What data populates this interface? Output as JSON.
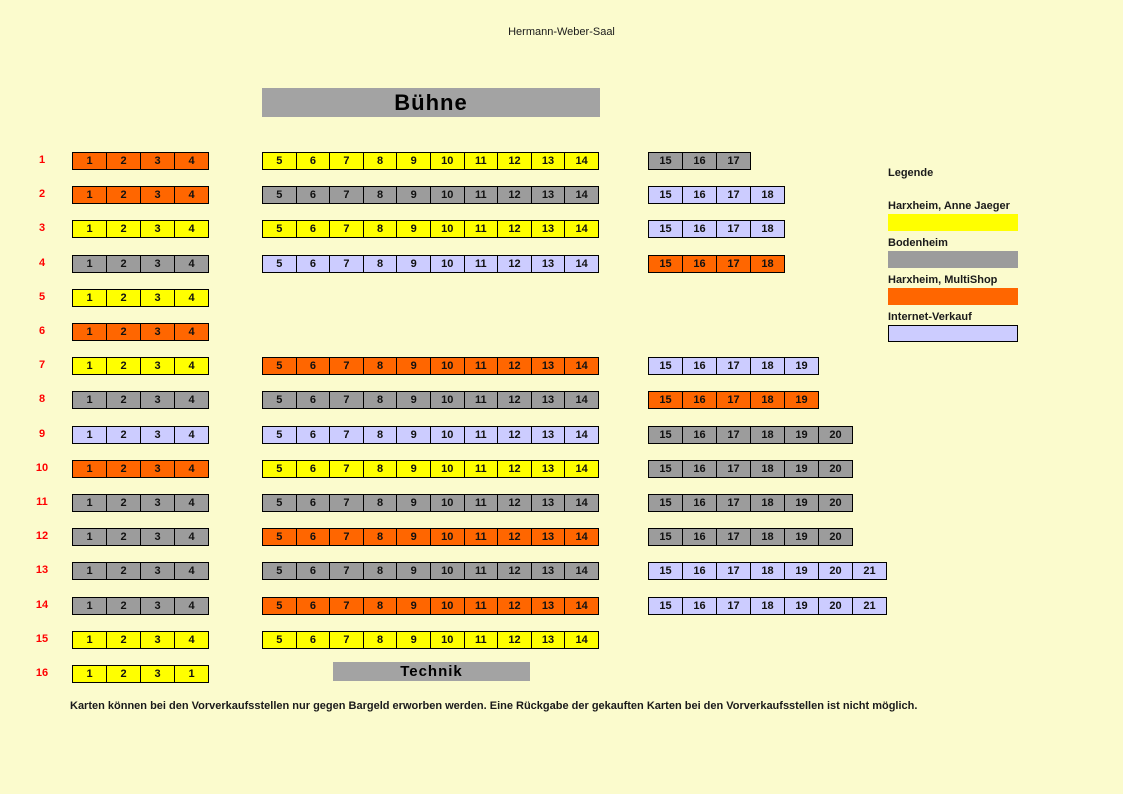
{
  "page": {
    "title": "Hermann-Weber-Saal",
    "background_color": "#FBFBCD",
    "footer_note": "Karten können bei den Vorverkaufsstellen nur gegen Bargeld erworben werden. Eine Rückgabe der gekauften Karten bei den Vorverkaufsstellen ist nicht möglich."
  },
  "stage": {
    "label": "Bühne"
  },
  "technik": {
    "label": "Technik"
  },
  "colors": {
    "yellow": "#FFFF00",
    "gray": "#9C9C9C",
    "orange": "#FF6600",
    "lavender": "#CCCCFF",
    "bar_gray": "#A3A3A3",
    "row_label": "#FF0000"
  },
  "legend": {
    "title": "Legende",
    "items": [
      {
        "label": "Harxheim, Anne Jaeger",
        "color_key": "yellow",
        "bordered": false
      },
      {
        "label": "Bodenheim",
        "color_key": "gray",
        "bordered": false
      },
      {
        "label": "Harxheim, MultiShop",
        "color_key": "orange",
        "bordered": false
      },
      {
        "label": "Internet-Verkauf",
        "color_key": "lavender",
        "bordered": true
      }
    ]
  },
  "rows": [
    {
      "label": "1",
      "left": {
        "color_key": "orange",
        "seats": [
          "1",
          "2",
          "3",
          "4"
        ]
      },
      "middle": {
        "color_key": "yellow",
        "seats": [
          "5",
          "6",
          "7",
          "8",
          "9",
          "10",
          "11",
          "12",
          "13",
          "14"
        ]
      },
      "right": {
        "color_key": "gray",
        "seats": [
          "15",
          "16",
          "17"
        ]
      }
    },
    {
      "label": "2",
      "left": {
        "color_key": "orange",
        "seats": [
          "1",
          "2",
          "3",
          "4"
        ]
      },
      "middle": {
        "color_key": "gray",
        "seats": [
          "5",
          "6",
          "7",
          "8",
          "9",
          "10",
          "11",
          "12",
          "13",
          "14"
        ]
      },
      "right": {
        "color_key": "lavender",
        "seats": [
          "15",
          "16",
          "17",
          "18"
        ]
      }
    },
    {
      "label": "3",
      "left": {
        "color_key": "yellow",
        "seats": [
          "1",
          "2",
          "3",
          "4"
        ]
      },
      "middle": {
        "color_key": "yellow",
        "seats": [
          "5",
          "6",
          "7",
          "8",
          "9",
          "10",
          "11",
          "12",
          "13",
          "14"
        ]
      },
      "right": {
        "color_key": "lavender",
        "seats": [
          "15",
          "16",
          "17",
          "18"
        ]
      }
    },
    {
      "label": "4",
      "left": {
        "color_key": "gray",
        "seats": [
          "1",
          "2",
          "3",
          "4"
        ]
      },
      "middle": {
        "color_key": "lavender",
        "seats": [
          "5",
          "6",
          "7",
          "8",
          "9",
          "10",
          "11",
          "12",
          "13",
          "14"
        ]
      },
      "right": {
        "color_key": "orange",
        "seats": [
          "15",
          "16",
          "17",
          "18"
        ]
      }
    },
    {
      "label": "5",
      "left": {
        "color_key": "yellow",
        "seats": [
          "1",
          "2",
          "3",
          "4"
        ]
      },
      "middle": null,
      "right": null
    },
    {
      "label": "6",
      "left": {
        "color_key": "orange",
        "seats": [
          "1",
          "2",
          "3",
          "4"
        ]
      },
      "middle": null,
      "right": null
    },
    {
      "label": "7",
      "left": {
        "color_key": "yellow",
        "seats": [
          "1",
          "2",
          "3",
          "4"
        ]
      },
      "middle": {
        "color_key": "orange",
        "seats": [
          "5",
          "6",
          "7",
          "8",
          "9",
          "10",
          "11",
          "12",
          "13",
          "14"
        ]
      },
      "right": {
        "color_key": "lavender",
        "seats": [
          "15",
          "16",
          "17",
          "18",
          "19"
        ]
      }
    },
    {
      "label": "8",
      "left": {
        "color_key": "gray",
        "seats": [
          "1",
          "2",
          "3",
          "4"
        ]
      },
      "middle": {
        "color_key": "gray",
        "seats": [
          "5",
          "6",
          "7",
          "8",
          "9",
          "10",
          "11",
          "12",
          "13",
          "14"
        ]
      },
      "right": {
        "color_key": "orange",
        "seats": [
          "15",
          "16",
          "17",
          "18",
          "19"
        ]
      }
    },
    {
      "label": "9",
      "left": {
        "color_key": "lavender",
        "seats": [
          "1",
          "2",
          "3",
          "4"
        ]
      },
      "middle": {
        "color_key": "lavender",
        "seats": [
          "5",
          "6",
          "7",
          "8",
          "9",
          "10",
          "11",
          "12",
          "13",
          "14"
        ]
      },
      "right": {
        "color_key": "gray",
        "seats": [
          "15",
          "16",
          "17",
          "18",
          "19",
          "20"
        ]
      }
    },
    {
      "label": "10",
      "left": {
        "color_key": "orange",
        "seats": [
          "1",
          "2",
          "3",
          "4"
        ]
      },
      "middle": {
        "color_key": "yellow",
        "seats": [
          "5",
          "6",
          "7",
          "8",
          "9",
          "10",
          "11",
          "12",
          "13",
          "14"
        ]
      },
      "right": {
        "color_key": "gray",
        "seats": [
          "15",
          "16",
          "17",
          "18",
          "19",
          "20"
        ]
      }
    },
    {
      "label": "11",
      "left": {
        "color_key": "gray",
        "seats": [
          "1",
          "2",
          "3",
          "4"
        ]
      },
      "middle": {
        "color_key": "gray",
        "seats": [
          "5",
          "6",
          "7",
          "8",
          "9",
          "10",
          "11",
          "12",
          "13",
          "14"
        ]
      },
      "right": {
        "color_key": "gray",
        "seats": [
          "15",
          "16",
          "17",
          "18",
          "19",
          "20"
        ]
      }
    },
    {
      "label": "12",
      "left": {
        "color_key": "gray",
        "seats": [
          "1",
          "2",
          "3",
          "4"
        ]
      },
      "middle": {
        "color_key": "orange",
        "seats": [
          "5",
          "6",
          "7",
          "8",
          "9",
          "10",
          "11",
          "12",
          "13",
          "14"
        ]
      },
      "right": {
        "color_key": "gray",
        "seats": [
          "15",
          "16",
          "17",
          "18",
          "19",
          "20"
        ]
      }
    },
    {
      "label": "13",
      "left": {
        "color_key": "gray",
        "seats": [
          "1",
          "2",
          "3",
          "4"
        ]
      },
      "middle": {
        "color_key": "gray",
        "seats": [
          "5",
          "6",
          "7",
          "8",
          "9",
          "10",
          "11",
          "12",
          "13",
          "14"
        ]
      },
      "right": {
        "color_key": "lavender",
        "seats": [
          "15",
          "16",
          "17",
          "18",
          "19",
          "20",
          "21"
        ]
      }
    },
    {
      "label": "14",
      "left": {
        "color_key": "gray",
        "seats": [
          "1",
          "2",
          "3",
          "4"
        ]
      },
      "middle": {
        "color_key": "orange",
        "seats": [
          "5",
          "6",
          "7",
          "8",
          "9",
          "10",
          "11",
          "12",
          "13",
          "14"
        ]
      },
      "right": {
        "color_key": "lavender",
        "seats": [
          "15",
          "16",
          "17",
          "18",
          "19",
          "20",
          "21"
        ]
      }
    },
    {
      "label": "15",
      "left": {
        "color_key": "yellow",
        "seats": [
          "1",
          "2",
          "3",
          "4"
        ]
      },
      "middle": {
        "color_key": "yellow",
        "seats": [
          "5",
          "6",
          "7",
          "8",
          "9",
          "10",
          "11",
          "12",
          "13",
          "14"
        ]
      },
      "right": null
    },
    {
      "label": "16",
      "left": {
        "color_key": "yellow",
        "seats": [
          "1",
          "2",
          "3",
          "1"
        ]
      },
      "middle": null,
      "right": null
    }
  ]
}
